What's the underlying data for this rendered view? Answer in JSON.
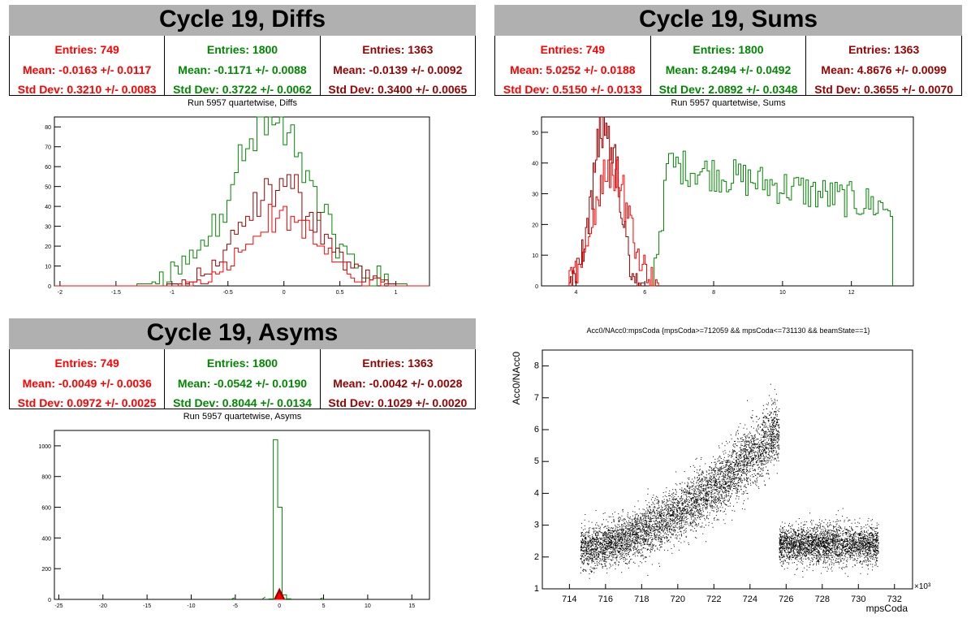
{
  "panels": {
    "diffs": {
      "title": "Cycle 19, Diffs",
      "subtitle": "Run 5957 quartetwise, Diffs",
      "stats": [
        {
          "entries": "Entries: 749",
          "mean": "Mean: -0.0163 +/- 0.0117",
          "std": "Std Dev: 0.3210 +/- 0.0083"
        },
        {
          "entries": "Entries: 1800",
          "mean": "Mean: -0.1171 +/- 0.0088",
          "std": "Std Dev: 0.3722 +/- 0.0062"
        },
        {
          "entries": "Entries: 1363",
          "mean": "Mean: -0.0139 +/- 0.0092",
          "std": "Std Dev: 0.3400 +/- 0.0065"
        }
      ]
    },
    "sums": {
      "title": "Cycle 19, Sums",
      "subtitle": "Run 5957 quartetwise, Sums",
      "stats": [
        {
          "entries": "Entries: 749",
          "mean": "Mean: 5.0252 +/- 0.0188",
          "std": "Std Dev: 0.5150 +/- 0.0133"
        },
        {
          "entries": "Entries: 1800",
          "mean": "Mean: 8.2494 +/- 0.0492",
          "std": "Std Dev: 2.0892 +/- 0.0348"
        },
        {
          "entries": "Entries: 1363",
          "mean": "Mean: 4.8676 +/- 0.0099",
          "std": "Std Dev: 0.3655 +/- 0.0070"
        }
      ]
    },
    "asyms": {
      "title": "Cycle 19, Asyms",
      "subtitle": "Run 5957 quartetwise, Asyms",
      "stats": [
        {
          "entries": "Entries: 749",
          "mean": "Mean: -0.0049 +/- 0.0036",
          "std": "Std Dev: 0.0972 +/- 0.0025"
        },
        {
          "entries": "Entries: 1800",
          "mean": "Mean: -0.0542 +/- 0.0190",
          "std": "Std Dev: 0.8044 +/- 0.0134"
        },
        {
          "entries": "Entries: 1363",
          "mean": "Mean: -0.0042 +/- 0.0028",
          "std": "Std Dev: 0.1029 +/- 0.0020"
        }
      ]
    },
    "scatter": {
      "title": "Acc0/NAcc0:mpsCoda {mpsCoda>=712059 && mpsCoda<=731130 && beamState==1}"
    }
  },
  "colors": {
    "red": "#ff0000",
    "green": "#008800",
    "darkred": "#990000",
    "black": "#000000",
    "title_bg": "#b0b0b0"
  },
  "chart_data": [
    {
      "type": "histogram",
      "title": "Run 5957 quartetwise, Diffs",
      "xlim": [
        -2.05,
        1.3
      ],
      "ylim": [
        0,
        85
      ],
      "xticks": [
        -2,
        -1.5,
        -1,
        -0.5,
        0,
        0.5,
        1
      ],
      "xticklabels": [
        "-2",
        "-1.5",
        "-1",
        "-0.5",
        "0",
        "0.5",
        "1"
      ],
      "yticks": [
        0,
        10,
        20,
        30,
        40,
        50,
        60,
        70,
        80
      ],
      "series": [
        {
          "color": "green",
          "entries": 1800,
          "mean": -0.1171,
          "std": 0.3722,
          "peak": 80
        },
        {
          "color": "darkred",
          "entries": 1363,
          "mean": -0.0139,
          "std": 0.34,
          "peak": 50
        },
        {
          "color": "red",
          "entries": 749,
          "mean": -0.0163,
          "std": 0.321,
          "peak": 35
        }
      ]
    },
    {
      "type": "histogram",
      "title": "Run 5957 quartetwise, Sums",
      "xlim": [
        3,
        13.8
      ],
      "ylim": [
        0,
        55
      ],
      "xticks": [
        4,
        6,
        8,
        10,
        12
      ],
      "xticklabels": [
        "4",
        "6",
        "8",
        "10",
        "12"
      ],
      "yticks": [
        0,
        10,
        20,
        30,
        40,
        50
      ],
      "series": [
        {
          "color": "green",
          "entries": 1800,
          "mean": 8.2494,
          "std": 2.0892,
          "peak": 45
        },
        {
          "color": "darkred",
          "entries": 1363,
          "mean": 4.8676,
          "std": 0.3655,
          "peak": 52
        },
        {
          "color": "red",
          "entries": 749,
          "mean": 5.0252,
          "std": 0.515,
          "peak": 38
        }
      ]
    },
    {
      "type": "histogram",
      "title": "Run 5957 quartetwise, Asyms",
      "xlim": [
        -25.5,
        17
      ],
      "ylim": [
        0,
        1100
      ],
      "xticks": [
        -25,
        -20,
        -15,
        -10,
        -5,
        0,
        5,
        10,
        15
      ],
      "xticklabels": [
        "-25",
        "-20",
        "-15",
        "-10",
        "-5",
        "0",
        "5",
        "10",
        "15"
      ],
      "yticks": [
        0,
        200,
        400,
        600,
        800,
        1000
      ],
      "series": [
        {
          "color": "green",
          "entries": 1800,
          "mean": -0.0542,
          "std": 0.8044,
          "bins": [
            [
              -0.5,
              1040
            ],
            [
              0,
              600
            ],
            [
              0.5,
              30
            ],
            [
              -1,
              20
            ]
          ]
        },
        {
          "color": "darkred",
          "entries": 1363,
          "mean": -0.0042,
          "std": 0.1029,
          "peak": 70
        },
        {
          "color": "red",
          "entries": 749,
          "mean": -0.0049,
          "std": 0.0972,
          "peak": 40
        }
      ]
    },
    {
      "type": "scatter",
      "title": "Acc0/NAcc0:mpsCoda {mpsCoda>=712059 && mpsCoda<=731130 && beamState==1}",
      "xlabel": "mpsCoda",
      "ylabel": "Acc0/NAcc0",
      "xlim": [
        712.5,
        733
      ],
      "ylim": [
        1,
        8.5
      ],
      "x_multiplier": "×10³",
      "xticks": [
        714,
        716,
        718,
        720,
        722,
        724,
        726,
        728,
        730,
        732
      ],
      "yticks": [
        1,
        2,
        3,
        4,
        5,
        6,
        7,
        8
      ],
      "segments": [
        {
          "x": [
            714.6,
            725.6
          ],
          "y_start": 2.3,
          "y_end": 6.0,
          "spread": 0.35
        },
        {
          "x": [
            725.6,
            731.1
          ],
          "y_start": 2.4,
          "y_end": 2.4,
          "spread": 0.3
        }
      ]
    }
  ]
}
